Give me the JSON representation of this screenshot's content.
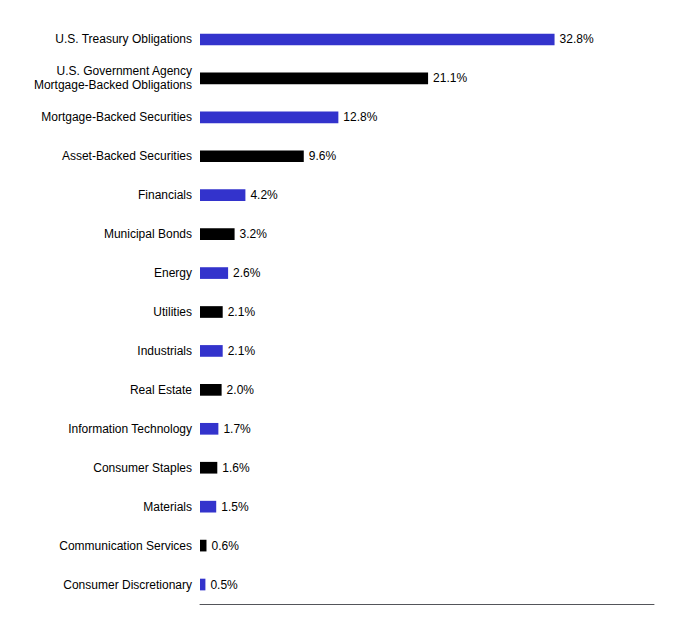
{
  "chart_data": {
    "type": "bar",
    "orientation": "horizontal",
    "categories": [
      "U.S. Treasury Obligations",
      "U.S. Government Agency\nMortgage-Backed Obligations",
      "Mortgage-Backed Securities",
      "Asset-Backed Securities",
      "Financials",
      "Municipal Bonds",
      "Energy",
      "Utilities",
      "Industrials",
      "Real Estate",
      "Information Technology",
      "Consumer Staples",
      "Materials",
      "Communication Services",
      "Consumer Discretionary"
    ],
    "values": [
      32.8,
      21.1,
      12.8,
      9.6,
      4.2,
      3.2,
      2.6,
      2.1,
      2.1,
      2.0,
      1.7,
      1.6,
      1.5,
      0.6,
      0.5
    ],
    "value_labels": [
      "32.8%",
      "21.1%",
      "12.8%",
      "9.6%",
      "4.2%",
      "3.2%",
      "2.6%",
      "2.1%",
      "2.1%",
      "2.0%",
      "1.7%",
      "1.6%",
      "1.5%",
      "0.6%",
      "0.5%"
    ],
    "colors": [
      "#3333cc",
      "#000000",
      "#3333cc",
      "#000000",
      "#3333cc",
      "#000000",
      "#3333cc",
      "#000000",
      "#3333cc",
      "#000000",
      "#3333cc",
      "#000000",
      "#3333cc",
      "#000000",
      "#3333cc"
    ],
    "xlim": [
      0,
      42
    ],
    "data_labels": true,
    "tick_labels": "y",
    "grid": false
  }
}
